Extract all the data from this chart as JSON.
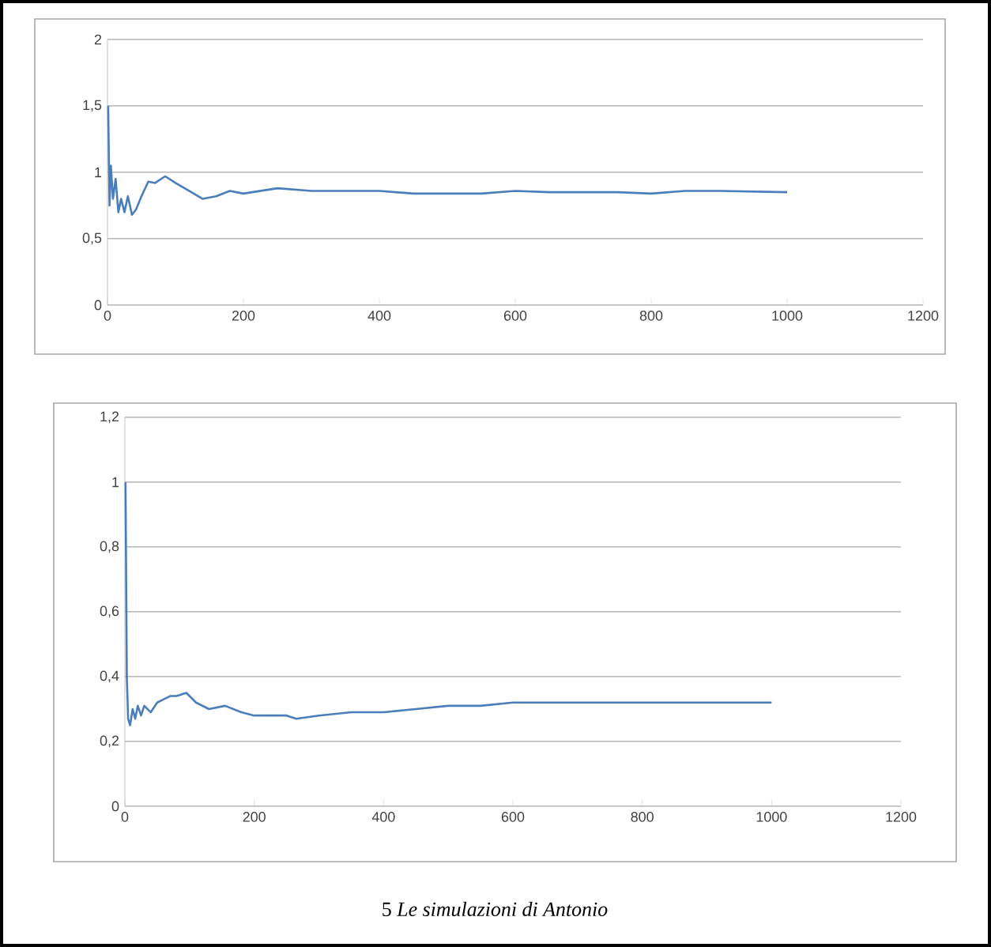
{
  "chart_data": [
    {
      "type": "line",
      "xlim": [
        0,
        1200
      ],
      "ylim": [
        0,
        2
      ],
      "xticks": [
        0,
        200,
        400,
        600,
        800,
        1000,
        1200
      ],
      "yticks": [
        0,
        {
          "value": 0.5,
          "label": "0,5"
        },
        1,
        {
          "value": 1.5,
          "label": "1,5"
        },
        2
      ],
      "grid": "y",
      "series": [
        {
          "color": "#4a7ebb",
          "x": [
            1,
            3,
            5,
            8,
            12,
            16,
            20,
            25,
            30,
            36,
            42,
            50,
            60,
            70,
            85,
            100,
            120,
            140,
            160,
            180,
            200,
            250,
            300,
            350,
            400,
            450,
            500,
            550,
            600,
            650,
            700,
            750,
            800,
            850,
            900,
            1000
          ],
          "values": [
            1.5,
            0.75,
            1.05,
            0.8,
            0.95,
            0.7,
            0.8,
            0.7,
            0.82,
            0.68,
            0.72,
            0.82,
            0.93,
            0.92,
            0.97,
            0.92,
            0.86,
            0.8,
            0.82,
            0.86,
            0.84,
            0.88,
            0.86,
            0.86,
            0.86,
            0.84,
            0.84,
            0.84,
            0.86,
            0.85,
            0.85,
            0.85,
            0.84,
            0.86,
            0.86,
            0.85
          ]
        }
      ]
    },
    {
      "type": "line",
      "xlim": [
        0,
        1200
      ],
      "ylim": [
        0,
        1.2
      ],
      "xticks": [
        0,
        200,
        400,
        600,
        800,
        1000,
        1200
      ],
      "yticks": [
        0,
        {
          "value": 0.2,
          "label": "0,2"
        },
        {
          "value": 0.4,
          "label": "0,4"
        },
        {
          "value": 0.6,
          "label": "0,6"
        },
        {
          "value": 0.8,
          "label": "0,8"
        },
        1,
        {
          "value": 1.2,
          "label": "1,2"
        }
      ],
      "grid": "y",
      "annotations": [
        "5 *Le simulazioni di Antonio*"
      ],
      "series": [
        {
          "color": "#4a7ebb",
          "x": [
            1,
            3,
            5,
            8,
            12,
            16,
            20,
            25,
            30,
            40,
            50,
            60,
            70,
            80,
            95,
            110,
            130,
            155,
            180,
            200,
            250,
            265,
            300,
            350,
            400,
            450,
            500,
            550,
            600,
            650,
            700,
            750,
            800,
            900,
            1000
          ],
          "values": [
            1,
            0.4,
            0.27,
            0.25,
            0.3,
            0.27,
            0.31,
            0.28,
            0.31,
            0.29,
            0.32,
            0.33,
            0.34,
            0.34,
            0.35,
            0.32,
            0.3,
            0.31,
            0.29,
            0.28,
            0.28,
            0.27,
            0.28,
            0.29,
            0.29,
            0.3,
            0.31,
            0.31,
            0.32,
            0.32,
            0.32,
            0.32,
            0.32,
            0.32,
            0.32
          ]
        }
      ]
    }
  ]
}
